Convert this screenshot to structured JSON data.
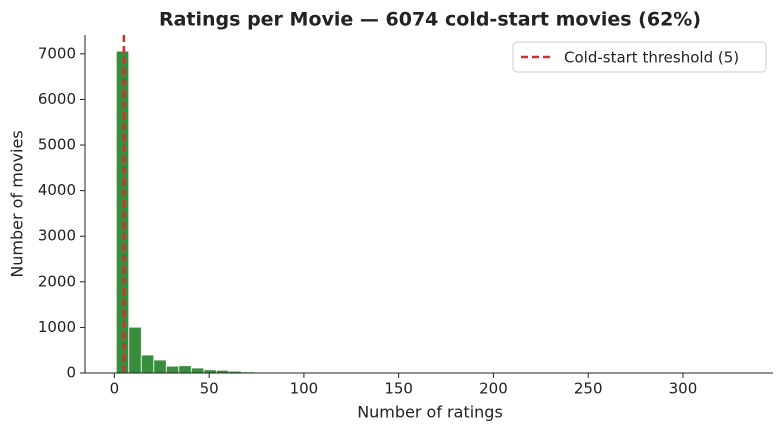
{
  "chart_data": {
    "type": "histogram",
    "title": "Ratings per Movie — 6074 cold-start movies (62%)",
    "x_label": "Number of ratings",
    "y_label": "Number of movies",
    "bins": [
      1,
      7.6,
      14.2,
      20.8,
      27.4,
      34,
      40.6,
      47.2,
      53.8,
      60.4,
      67,
      73.6,
      80.2,
      86.8,
      93.4,
      100,
      106.6,
      113.2,
      119.8,
      126.4,
      133,
      139.6,
      146.2,
      152.8,
      159.4,
      166,
      172.6,
      179.2,
      185.8,
      192.4,
      199,
      205.6,
      212.2,
      218.8,
      225.4,
      232,
      238.6,
      245.2,
      251.8,
      258.4,
      265,
      271.6,
      278.2,
      284.8,
      291.4,
      298,
      304.6,
      311.2,
      317.8,
      324.4,
      331
    ],
    "values": [
      7060,
      1005,
      395,
      285,
      150,
      160,
      110,
      70,
      60,
      40,
      25,
      20,
      15,
      10,
      8,
      6,
      5,
      4,
      3,
      3,
      2,
      2,
      2,
      1,
      1,
      1,
      1,
      0,
      1,
      0,
      1,
      0,
      0,
      1,
      0,
      0,
      0,
      0,
      0,
      1,
      0,
      0,
      0,
      0,
      0,
      0,
      0,
      0,
      0,
      1
    ],
    "color": "#388e3c",
    "threshold": {
      "x": 5,
      "label": "Cold-start threshold (5)",
      "color": "#d32f2f"
    },
    "legend": "upper right",
    "xlim": [
      -15.5,
      347.5
    ],
    "xticks": [
      0,
      50,
      100,
      150,
      200,
      250,
      300
    ],
    "ylim": [
      0,
      7413
    ],
    "yticks": [
      0,
      1000,
      2000,
      3000,
      4000,
      5000,
      6000,
      7000
    ]
  }
}
